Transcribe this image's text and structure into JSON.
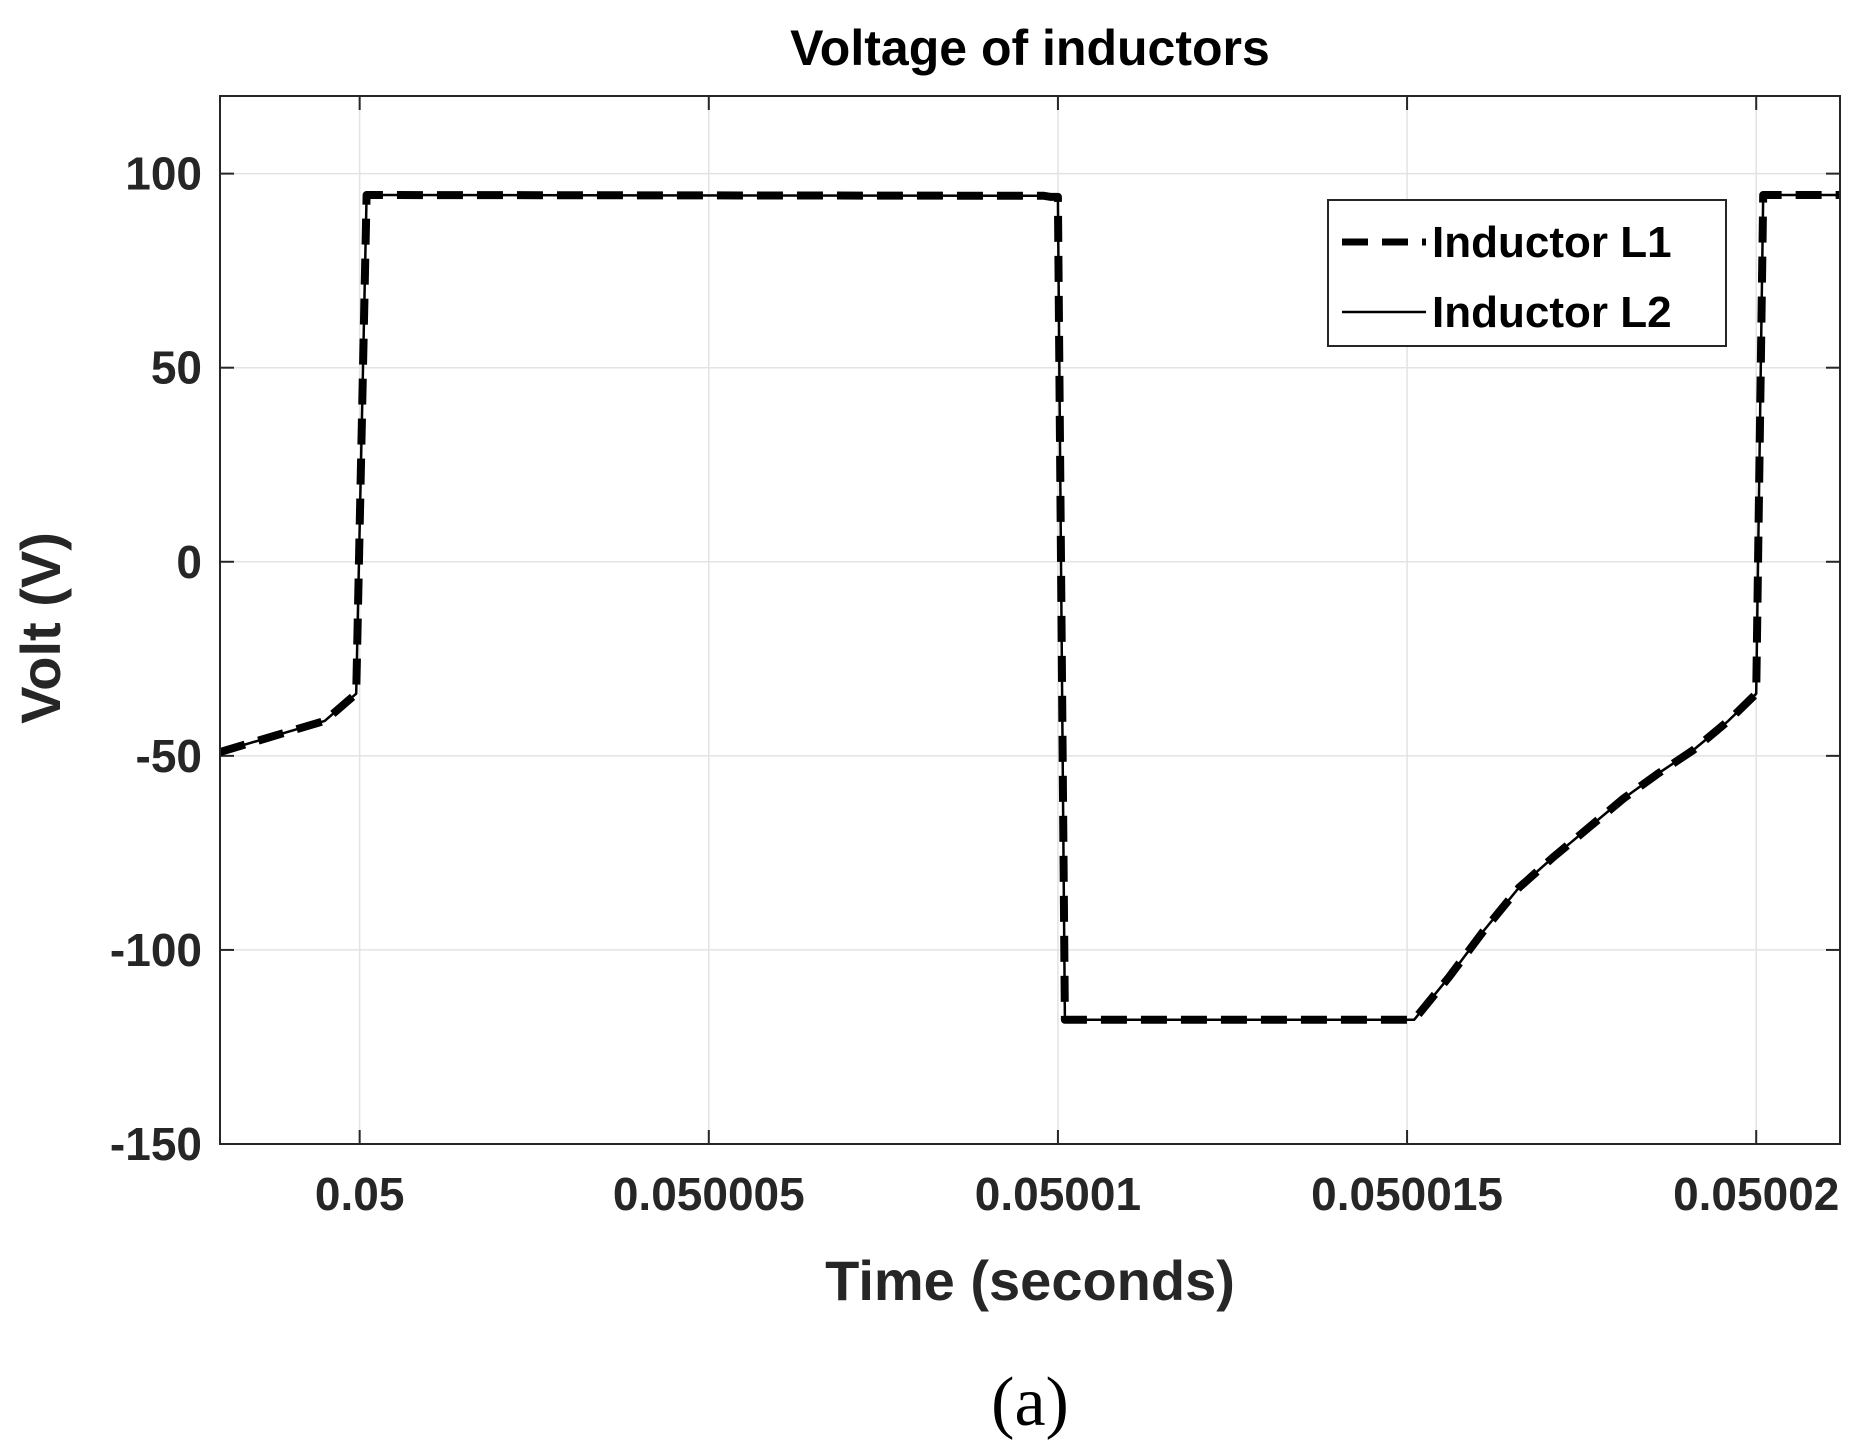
{
  "chart_data": {
    "type": "line",
    "title": "Voltage of inductors",
    "xlabel": "Time (seconds)",
    "ylabel": "Volt (V)",
    "caption": "(a)",
    "xlim": [
      0.049998,
      0.0500212
    ],
    "ylim": [
      -150,
      120
    ],
    "grid": true,
    "legend_position": "top-right",
    "x_ticks": [
      {
        "value": 0.05,
        "label": "0.05"
      },
      {
        "value": 0.050005,
        "label": "0.050005"
      },
      {
        "value": 0.05001,
        "label": "0.05001"
      },
      {
        "value": 0.050015,
        "label": "0.050015"
      },
      {
        "value": 0.05002,
        "label": "0.05002"
      }
    ],
    "y_ticks": [
      {
        "value": 100,
        "label": "100"
      },
      {
        "value": 50,
        "label": "50"
      },
      {
        "value": 0,
        "label": "0"
      },
      {
        "value": -50,
        "label": "-50"
      },
      {
        "value": -100,
        "label": "-100"
      },
      {
        "value": -150,
        "label": "-150"
      }
    ],
    "series": [
      {
        "name": "Inductor L1",
        "style": "dashed",
        "color": "#000000",
        "x": [
          0.049998,
          0.0499995,
          0.04999995,
          0.0500001,
          0.0500098,
          0.0500099,
          0.05001,
          0.0500101,
          0.0500151,
          0.0500156,
          0.0500161,
          0.0500166,
          0.0500171,
          0.0500176,
          0.0500181,
          0.0500186,
          0.0500191,
          0.0500196,
          0.05002,
          0.0500201,
          0.0500212
        ],
        "y": [
          -49,
          -41,
          -34,
          94.5,
          94.3,
          94,
          94,
          -118,
          -118,
          -107,
          -95,
          -84,
          -76,
          -68.5,
          -61,
          -54.5,
          -48.5,
          -41,
          -34,
          94.5,
          94.5
        ]
      },
      {
        "name": "Inductor L2",
        "style": "solid",
        "color": "#000000",
        "x": [
          0.049998,
          0.0499995,
          0.04999995,
          0.0500001,
          0.0500098,
          0.0500099,
          0.05001,
          0.0500101,
          0.0500151,
          0.0500156,
          0.0500161,
          0.0500166,
          0.0500171,
          0.0500176,
          0.0500181,
          0.0500186,
          0.0500191,
          0.0500196,
          0.05002,
          0.0500201,
          0.0500212
        ],
        "y": [
          -49,
          -41,
          -34,
          94.5,
          94.3,
          94,
          94,
          -118,
          -118,
          -107,
          -95,
          -84,
          -76,
          -68.5,
          -61,
          -54.5,
          -48.5,
          -41,
          -34,
          94.5,
          94.5
        ]
      }
    ]
  }
}
